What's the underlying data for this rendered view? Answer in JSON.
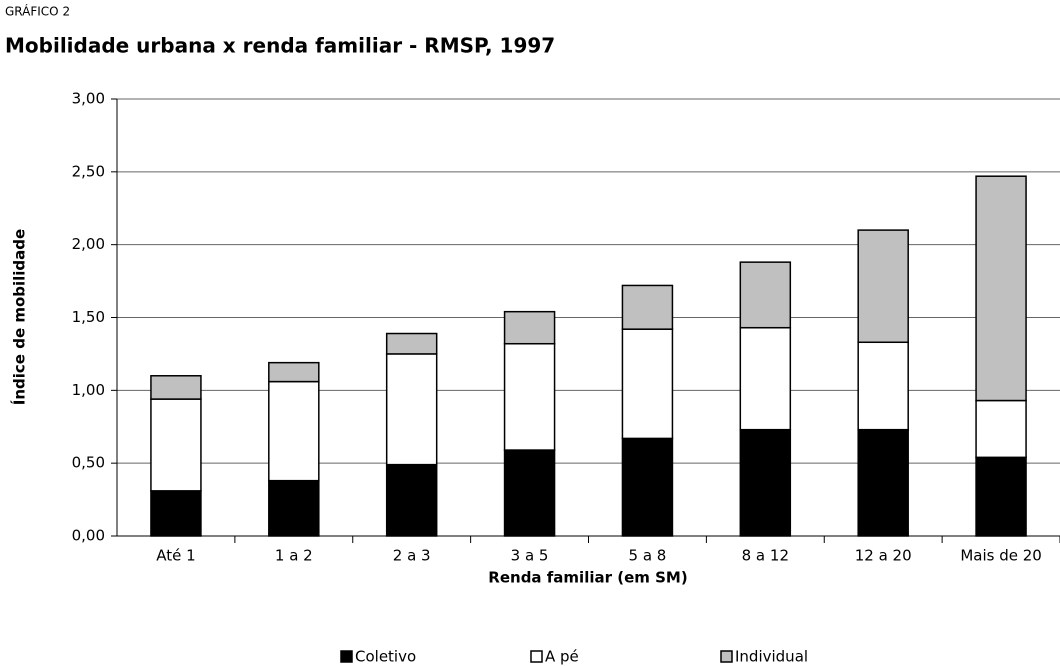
{
  "chart_data": {
    "type": "stacked_bar",
    "kicker": "GRÁFICO 2",
    "title": "Mobilidade urbana x renda familiar - RMSP, 1997",
    "x_label": "Renda familiar (em SM)",
    "y_label": "Índice de mobilidade",
    "categories": [
      "Até 1",
      "1 a 2",
      "2 a 3",
      "3 a 5",
      "5 a 8",
      "8 a 12",
      "12 a 20",
      "Mais de 20"
    ],
    "series": [
      {
        "name": "Coletivo",
        "color": "#000000",
        "values": [
          0.31,
          0.38,
          0.49,
          0.59,
          0.67,
          0.73,
          0.73,
          0.54
        ]
      },
      {
        "name": "A pé",
        "color": "#ffffff",
        "values": [
          0.63,
          0.68,
          0.76,
          0.73,
          0.75,
          0.7,
          0.6,
          0.39
        ]
      },
      {
        "name": "Individual",
        "color": "#c0c0c0",
        "values": [
          0.16,
          0.13,
          0.14,
          0.22,
          0.3,
          0.45,
          0.77,
          1.54
        ]
      }
    ],
    "ylim": [
      0,
      3
    ],
    "yticks": [
      {
        "value": 0,
        "label": "0,00"
      },
      {
        "value": 0.5,
        "label": "0,50"
      },
      {
        "value": 1,
        "label": "1,00"
      },
      {
        "value": 1.5,
        "label": "1,50"
      },
      {
        "value": 2,
        "label": "2,00"
      },
      {
        "value": 2.5,
        "label": "2,50"
      },
      {
        "value": 3,
        "label": "3,00"
      }
    ],
    "grid": true,
    "legend": "bottom"
  }
}
